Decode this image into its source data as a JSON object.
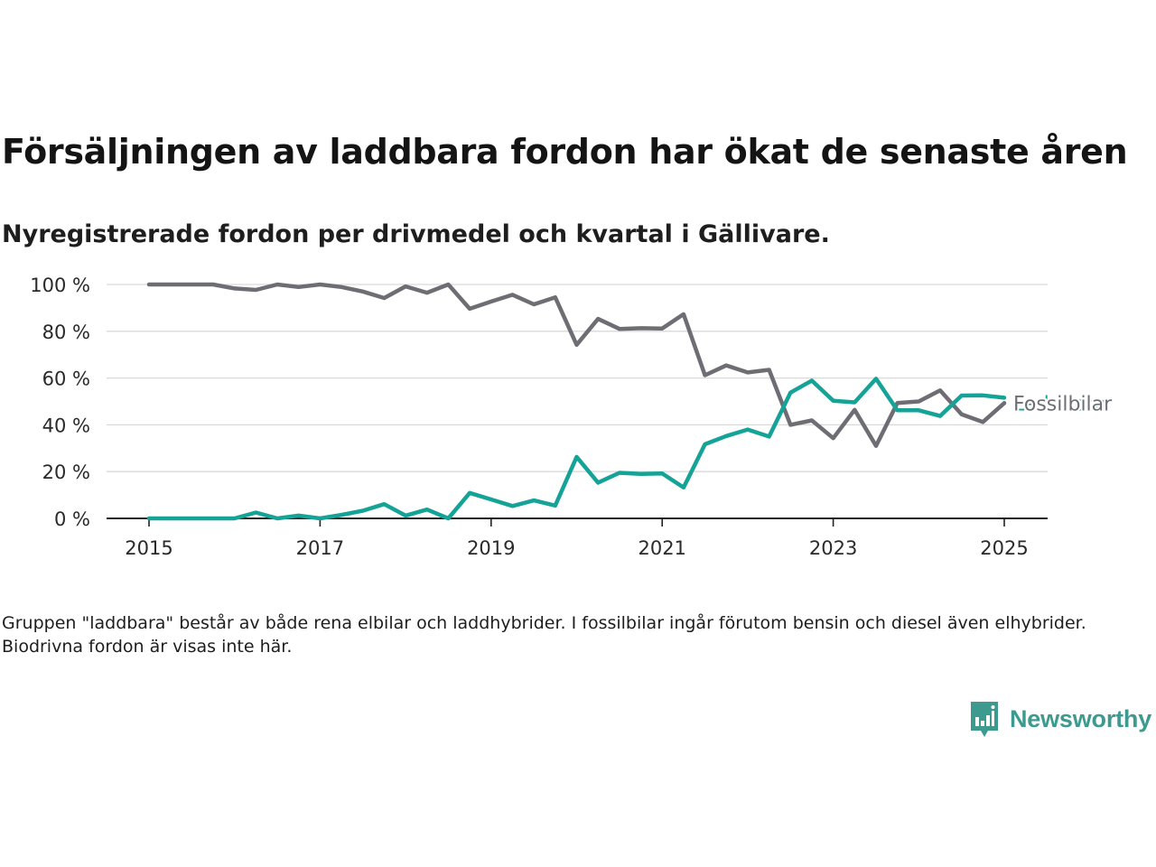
{
  "title": "Försäljningen av laddbara fordon har ökat de senaste åren",
  "subtitle": "Nyregistrerade fordon per drivmedel och kvartal i Gällivare.",
  "note": "Gruppen \"laddbara\" består av både rena elbilar och laddhybrider. I fossilbilar ingår förutom bensin och diesel även elhybrider. Biodrivna fordon är visas inte här.",
  "brand": {
    "name": "Newsworthy",
    "icon": "newsworthy-logo-icon",
    "color": "#3c9a8f"
  },
  "chart_data": {
    "type": "line",
    "y_ticks": [
      "0 %",
      "20 %",
      "40 %",
      "60 %",
      "80 %",
      "100 %"
    ],
    "x_ticks": [
      "2015",
      "2017",
      "2019",
      "2021",
      "2023",
      "2025"
    ],
    "ylim": [
      0,
      100
    ],
    "xlim": [
      2014.5,
      2025.5
    ],
    "grid": "horizontal",
    "legend": "line-end labels",
    "x": [
      2015.0,
      2015.25,
      2015.5,
      2015.75,
      2016.0,
      2016.25,
      2016.5,
      2016.75,
      2017.0,
      2017.25,
      2017.5,
      2017.75,
      2018.0,
      2018.25,
      2018.5,
      2018.75,
      2019.0,
      2019.25,
      2019.5,
      2019.75,
      2020.0,
      2020.25,
      2020.5,
      2020.75,
      2021.0,
      2021.25,
      2021.5,
      2021.75,
      2022.0,
      2022.25,
      2022.5,
      2022.75,
      2023.0,
      2023.25,
      2023.5,
      2023.75,
      2024.0,
      2024.25,
      2024.5,
      2024.75,
      2025.0
    ],
    "series": [
      {
        "name": "Fossilbilar",
        "color": "#6e6d73",
        "values": [
          100,
          100,
          100,
          100,
          98.3,
          97.7,
          100,
          98.9,
          100,
          98.9,
          97.0,
          94.2,
          99.2,
          96.5,
          100,
          89.6,
          92.7,
          95.6,
          91.5,
          94.5,
          74.2,
          85.3,
          81.0,
          81.3,
          81.2,
          87.3,
          61.2,
          65.4,
          62.4,
          63.5,
          40.0,
          41.9,
          34.3,
          46.4,
          31.0,
          49.3,
          50.0,
          54.7,
          44.5,
          41.2,
          49.3
        ]
      },
      {
        "name": "Laddbara",
        "color": "#14a396",
        "values": [
          0,
          0,
          0,
          0,
          0,
          2.5,
          0,
          1.2,
          0,
          1.5,
          3.3,
          6.1,
          1.2,
          3.8,
          0,
          10.9,
          8.1,
          5.3,
          7.7,
          5.5,
          26.3,
          15.3,
          19.5,
          19.0,
          19.2,
          13.2,
          31.7,
          35.2,
          38.0,
          35.0,
          53.8,
          58.9,
          50.3,
          49.6,
          59.7,
          46.2,
          46.2,
          43.8,
          52.5,
          52.6,
          51.6
        ]
      }
    ]
  }
}
